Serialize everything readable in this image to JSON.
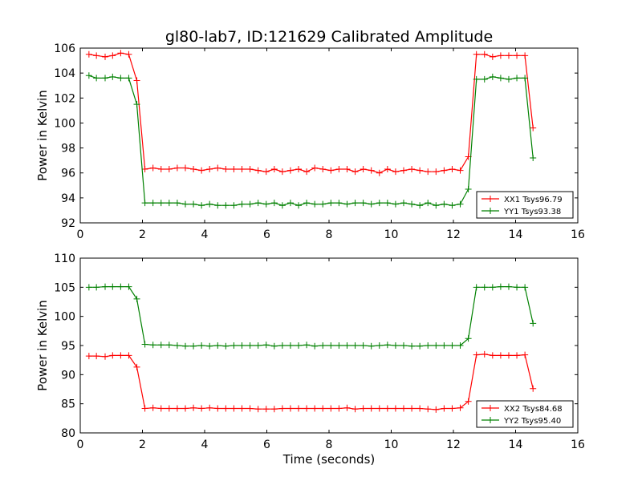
{
  "figure": {
    "title": "gl80-lab7, ID:121629 Calibrated Amplitude",
    "xlabel": "Time (seconds)"
  },
  "chart_data": [
    {
      "type": "line",
      "title": "gl80-lab7, ID:121629 Calibrated Amplitude",
      "xlabel": "",
      "ylabel": "Power in Kelvin",
      "xlim": [
        0,
        16
      ],
      "ylim": [
        92,
        106
      ],
      "xticks": [
        0,
        2,
        4,
        6,
        8,
        10,
        12,
        14,
        16
      ],
      "yticks": [
        92,
        94,
        96,
        98,
        100,
        102,
        104,
        106
      ],
      "grid": false,
      "legend": "lower-right",
      "x": [
        0.28,
        0.52,
        0.8,
        1.04,
        1.3,
        1.56,
        1.82,
        2.08,
        2.34,
        2.6,
        2.86,
        3.12,
        3.38,
        3.64,
        3.9,
        4.16,
        4.42,
        4.68,
        4.94,
        5.2,
        5.46,
        5.72,
        5.98,
        6.24,
        6.5,
        6.76,
        7.02,
        7.28,
        7.54,
        7.8,
        8.06,
        8.32,
        8.58,
        8.84,
        9.1,
        9.36,
        9.62,
        9.88,
        10.14,
        10.4,
        10.66,
        10.92,
        11.18,
        11.44,
        11.7,
        11.96,
        12.22,
        12.48,
        12.74,
        13.0,
        13.26,
        13.52,
        13.78,
        14.04,
        14.3,
        14.56,
        14.82
      ],
      "series": [
        {
          "name": "XX1 Tsys96.79",
          "color": "#ff0000",
          "values": [
            105.5,
            105.4,
            105.3,
            105.4,
            105.6,
            105.5,
            103.4,
            96.3,
            96.4,
            96.3,
            96.3,
            96.4,
            96.4,
            96.3,
            96.2,
            96.3,
            96.4,
            96.3,
            96.3,
            96.3,
            96.3,
            96.2,
            96.1,
            96.3,
            96.1,
            96.2,
            96.3,
            96.1,
            96.4,
            96.3,
            96.2,
            96.3,
            96.3,
            96.1,
            96.3,
            96.2,
            96.0,
            96.3,
            96.1,
            96.2,
            96.3,
            96.2,
            96.1,
            96.1,
            96.2,
            96.3,
            96.2,
            97.3,
            105.5,
            105.5,
            105.3,
            105.4,
            105.4,
            105.4,
            105.4,
            99.6,
            null
          ],
          "note_x_end": null
        },
        {
          "name": "YY1 Tsys93.38",
          "color": "#008000",
          "values": [
            103.8,
            103.6,
            103.6,
            103.7,
            103.6,
            103.6,
            101.5,
            93.6,
            93.6,
            93.6,
            93.6,
            93.6,
            93.5,
            93.5,
            93.4,
            93.5,
            93.4,
            93.4,
            93.4,
            93.5,
            93.5,
            93.6,
            93.5,
            93.6,
            93.4,
            93.6,
            93.4,
            93.6,
            93.5,
            93.5,
            93.6,
            93.6,
            93.5,
            93.6,
            93.6,
            93.5,
            93.6,
            93.6,
            93.5,
            93.6,
            93.5,
            93.4,
            93.6,
            93.4,
            93.5,
            93.4,
            93.5,
            94.7,
            103.5,
            103.5,
            103.7,
            103.6,
            103.5,
            103.6,
            103.6,
            97.2,
            null
          ]
        }
      ]
    },
    {
      "type": "line",
      "title": "",
      "xlabel": "Time (seconds)",
      "ylabel": "Power in Kelvin",
      "xlim": [
        0,
        16
      ],
      "ylim": [
        80,
        110
      ],
      "xticks": [
        0,
        2,
        4,
        6,
        8,
        10,
        12,
        14,
        16
      ],
      "yticks": [
        80,
        85,
        90,
        95,
        100,
        105,
        110
      ],
      "grid": false,
      "legend": "lower-right",
      "x": [
        0.28,
        0.52,
        0.8,
        1.04,
        1.3,
        1.56,
        1.82,
        2.08,
        2.34,
        2.6,
        2.86,
        3.12,
        3.38,
        3.64,
        3.9,
        4.16,
        4.42,
        4.68,
        4.94,
        5.2,
        5.46,
        5.72,
        5.98,
        6.24,
        6.5,
        6.76,
        7.02,
        7.28,
        7.54,
        7.8,
        8.06,
        8.32,
        8.58,
        8.84,
        9.1,
        9.36,
        9.62,
        9.88,
        10.14,
        10.4,
        10.66,
        10.92,
        11.18,
        11.44,
        11.7,
        11.96,
        12.22,
        12.48,
        12.74,
        13.0,
        13.26,
        13.52,
        13.78,
        14.04,
        14.3,
        14.56,
        14.82
      ],
      "series": [
        {
          "name": "XX2 Tsys84.68",
          "color": "#ff0000",
          "values": [
            93.2,
            93.2,
            93.1,
            93.3,
            93.3,
            93.3,
            91.3,
            84.2,
            84.3,
            84.2,
            84.2,
            84.2,
            84.2,
            84.3,
            84.2,
            84.3,
            84.2,
            84.2,
            84.2,
            84.2,
            84.2,
            84.1,
            84.1,
            84.1,
            84.2,
            84.2,
            84.2,
            84.2,
            84.2,
            84.2,
            84.2,
            84.2,
            84.3,
            84.1,
            84.2,
            84.2,
            84.2,
            84.2,
            84.2,
            84.2,
            84.2,
            84.2,
            84.1,
            84.0,
            84.2,
            84.2,
            84.3,
            85.4,
            93.4,
            93.5,
            93.3,
            93.3,
            93.3,
            93.3,
            93.4,
            87.6,
            null
          ]
        },
        {
          "name": "YY2 Tsys95.40",
          "color": "#008000",
          "values": [
            105.0,
            105.0,
            105.1,
            105.1,
            105.1,
            105.1,
            103.0,
            95.2,
            95.1,
            95.1,
            95.1,
            95.0,
            94.9,
            94.9,
            95.0,
            94.9,
            95.0,
            94.9,
            95.0,
            95.0,
            95.0,
            95.0,
            95.1,
            94.9,
            95.0,
            95.0,
            95.0,
            95.1,
            94.9,
            95.0,
            95.0,
            95.0,
            95.0,
            95.0,
            95.0,
            94.9,
            95.0,
            95.1,
            95.0,
            95.0,
            94.9,
            94.9,
            95.0,
            95.0,
            95.0,
            95.0,
            95.0,
            96.2,
            105.0,
            105.0,
            105.0,
            105.1,
            105.1,
            105.0,
            105.0,
            98.8,
            null
          ]
        }
      ]
    }
  ]
}
